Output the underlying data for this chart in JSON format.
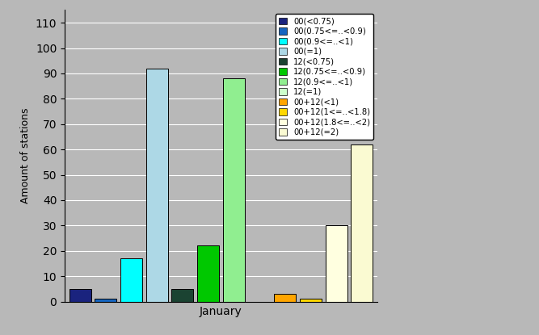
{
  "title": "",
  "xlabel": "January",
  "ylabel": "Amount of stations",
  "ylim": [
    0,
    115
  ],
  "yticks": [
    0,
    10,
    20,
    30,
    40,
    50,
    60,
    70,
    80,
    90,
    100,
    110
  ],
  "background_color": "#b8b8b8",
  "plot_bg_color": "#b8b8b8",
  "bars": [
    {
      "label": "00(<0.75)",
      "value": 5,
      "color": "#1a237e",
      "x": 1
    },
    {
      "label": "00(0.75<=..<0.9)",
      "value": 1,
      "color": "#1565c0",
      "x": 2
    },
    {
      "label": "00(0.9<=..<1)",
      "value": 17,
      "color": "#00FFFF",
      "x": 3
    },
    {
      "label": "00(=1)",
      "value": 92,
      "color": "#ADD8E6",
      "x": 4
    },
    {
      "label": "12(<0.75)",
      "value": 5,
      "color": "#1B4332",
      "x": 5
    },
    {
      "label": "12(0.75<=..<0.9)",
      "value": 22,
      "color": "#00C800",
      "x": 6
    },
    {
      "label": "12(0.9<=..<1)",
      "value": 88,
      "color": "#90EE90",
      "x": 7
    },
    {
      "label": "12(=1)",
      "value": 0,
      "color": "#CCFFCC",
      "x": 8
    },
    {
      "label": "00+12(<1)",
      "value": 3,
      "color": "#FFA500",
      "x": 9
    },
    {
      "label": "00+12(1<=..<1.8)",
      "value": 1,
      "color": "#FFD700",
      "x": 10
    },
    {
      "label": "00+12(1.8<=..<2)",
      "value": 30,
      "color": "#FFFFE0",
      "x": 11
    },
    {
      "label": "00+12(=2)",
      "value": 62,
      "color": "#FAFAD2",
      "x": 12
    }
  ],
  "bar_width": 0.85,
  "grid_color": "#ffffff",
  "grid_linewidth": 0.8,
  "legend_fontsize": 7.2,
  "xlabel_fontsize": 10,
  "ylabel_fontsize": 9
}
